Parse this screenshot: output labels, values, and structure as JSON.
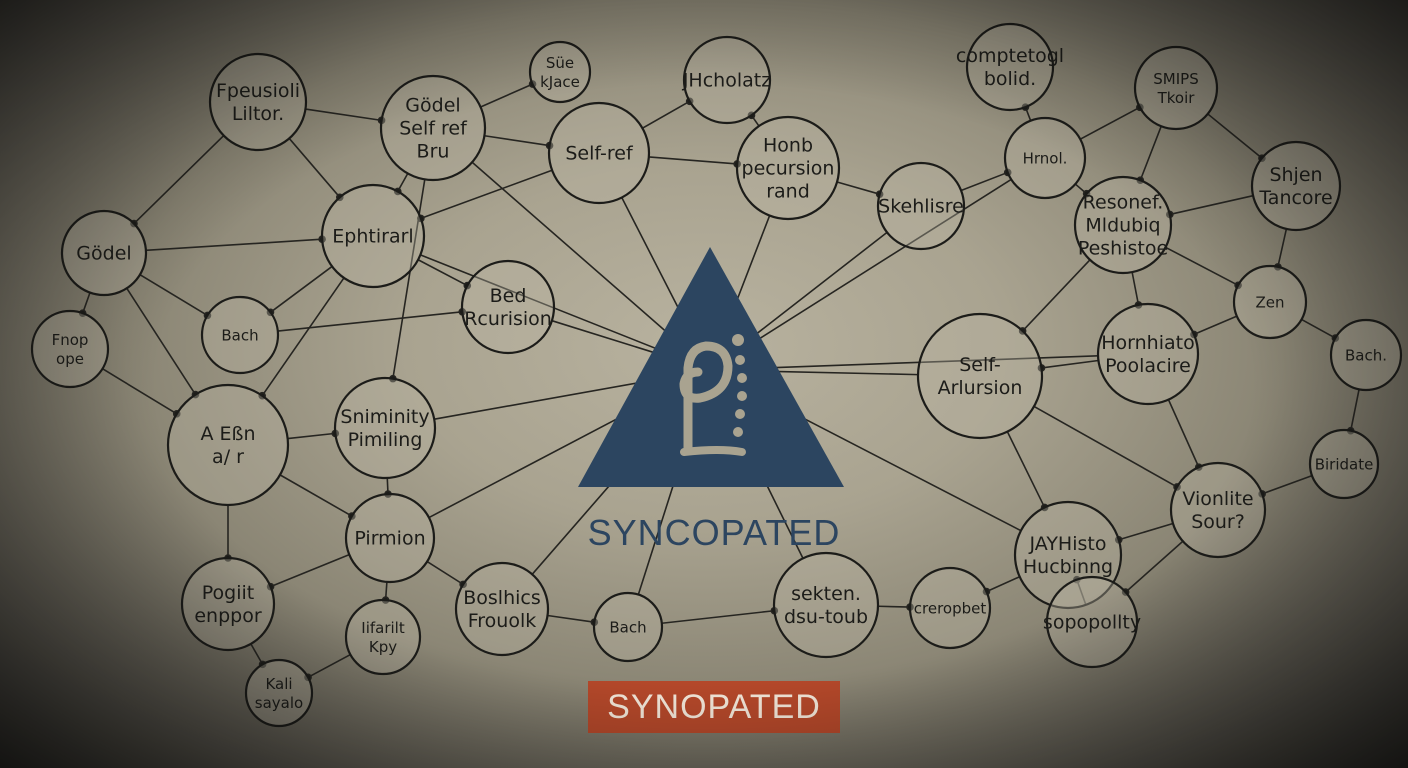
{
  "brand": {
    "name_mid": "SYNCOPATED",
    "badge_text": "SYNOPATED",
    "colors": {
      "logo": "#2c4560",
      "badge": "#b4482a",
      "ink": "#1c1c19"
    }
  },
  "logo_icon": "triangle-clef-icon",
  "nodes": [
    {
      "id": "n1",
      "lines": [
        "Fpeusioli",
        "Liltor."
      ]
    },
    {
      "id": "n2",
      "lines": [
        "Süe",
        "kJace"
      ]
    },
    {
      "id": "n3",
      "lines": [
        "Gödel",
        "Self ref",
        "Bru"
      ]
    },
    {
      "id": "n4",
      "lines": [
        "JHcholatz"
      ]
    },
    {
      "id": "n5",
      "lines": [
        "Self-ref"
      ]
    },
    {
      "id": "n6",
      "lines": [
        "Honb",
        "pecursion",
        "rand"
      ]
    },
    {
      "id": "n7",
      "lines": [
        "comptetogl",
        "bolid."
      ]
    },
    {
      "id": "n8",
      "lines": [
        "Skehlisre"
      ]
    },
    {
      "id": "n9",
      "lines": [
        "Hrnol."
      ]
    },
    {
      "id": "n10",
      "lines": [
        "SMIPS",
        "Tkoir"
      ]
    },
    {
      "id": "n11",
      "lines": [
        "Shjen",
        "Tancore"
      ]
    },
    {
      "id": "n12",
      "lines": [
        "Gödel"
      ]
    },
    {
      "id": "n13",
      "lines": [
        "Ephtirarl"
      ]
    },
    {
      "id": "n14",
      "lines": [
        "Resonef.",
        "Mldubiq",
        "Peshistoe"
      ]
    },
    {
      "id": "n15",
      "lines": [
        "Fnop",
        "ope"
      ]
    },
    {
      "id": "n16",
      "lines": [
        "Bach"
      ]
    },
    {
      "id": "n17",
      "lines": [
        "Bed",
        "Rcurision"
      ]
    },
    {
      "id": "n18",
      "lines": [
        "Zen"
      ]
    },
    {
      "id": "n19",
      "lines": [
        "Self-",
        "Arlursion"
      ]
    },
    {
      "id": "n20",
      "lines": [
        "Hornhiato",
        "Poolacire"
      ]
    },
    {
      "id": "n21",
      "lines": [
        "Bach."
      ]
    },
    {
      "id": "n22",
      "lines": [
        "A  Eßn",
        "a/ r"
      ]
    },
    {
      "id": "n23",
      "lines": [
        "Sniminity",
        "Pimiling"
      ]
    },
    {
      "id": "n24",
      "lines": [
        "Biridate"
      ]
    },
    {
      "id": "n25",
      "lines": [
        "Vionlite",
        "Sour?"
      ]
    },
    {
      "id": "n26",
      "lines": [
        "Pirmion"
      ]
    },
    {
      "id": "n27",
      "lines": [
        "JAYHisto",
        "Hucbinng"
      ]
    },
    {
      "id": "n28",
      "lines": [
        "Pogiit",
        "enppor"
      ]
    },
    {
      "id": "n29",
      "lines": [
        "Boslhics",
        "Frouolk"
      ]
    },
    {
      "id": "n30",
      "lines": [
        "Iifarilt",
        "Kpy"
      ]
    },
    {
      "id": "n31",
      "lines": [
        "Bach"
      ]
    },
    {
      "id": "n32",
      "lines": [
        "sekten.",
        "dsu-toub"
      ]
    },
    {
      "id": "n33",
      "lines": [
        "creropbet"
      ]
    },
    {
      "id": "n34",
      "lines": [
        "sopopollty"
      ]
    },
    {
      "id": "n35",
      "lines": [
        "Kali",
        "sayalo"
      ]
    }
  ]
}
